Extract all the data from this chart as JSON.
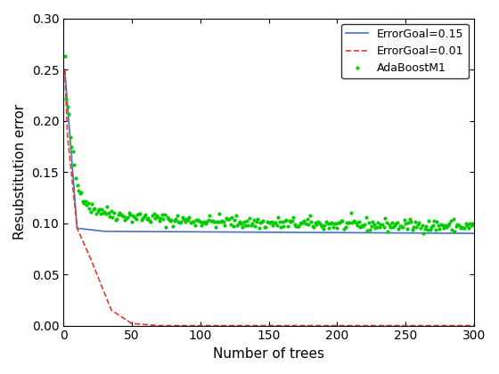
{
  "title": "",
  "xlabel": "Number of trees",
  "ylabel": "Resubstitution error",
  "xlim": [
    0,
    300
  ],
  "ylim": [
    0,
    0.3
  ],
  "xticks": [
    0,
    50,
    100,
    150,
    200,
    250,
    300
  ],
  "yticks": [
    0,
    0.05,
    0.1,
    0.15,
    0.2,
    0.25,
    0.3
  ],
  "legend_labels": [
    "ErrorGoal=0.15",
    "ErrorGoal=0.01",
    "AdaBoostM1"
  ],
  "line1_color": "#4472c4",
  "line2_color": "#e8392a",
  "line3_color": "#00cc00",
  "figsize": [
    5.6,
    4.2
  ],
  "dpi": 100
}
